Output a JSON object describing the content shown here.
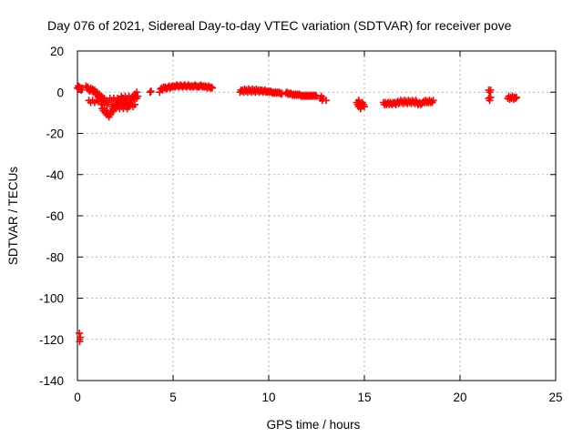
{
  "chart_data": {
    "type": "scatter",
    "title": "Day 076 of 2021, Sidereal Day-to-day VTEC variation (SDTVAR) for receiver pove",
    "xlabel": "GPS time / hours",
    "ylabel": "SDTVAR / TECUs",
    "xlim": [
      0,
      25
    ],
    "ylim": [
      -140,
      20
    ],
    "xticks": [
      0,
      5,
      10,
      15,
      20,
      25
    ],
    "yticks": [
      20,
      0,
      -20,
      -40,
      -60,
      -80,
      -100,
      -120,
      -140
    ],
    "grid": true,
    "marker": "+",
    "color": "#ff0000",
    "series": [
      {
        "name": "SDTVAR",
        "points": [
          [
            0.0,
            2
          ],
          [
            0.05,
            3
          ],
          [
            0.08,
            1.5
          ],
          [
            0.1,
            2.5
          ],
          [
            0.15,
            2
          ],
          [
            0.2,
            1
          ],
          [
            0.25,
            2
          ],
          [
            0.1,
            -117
          ],
          [
            0.15,
            -119
          ],
          [
            0.12,
            -121
          ],
          [
            0.45,
            3
          ],
          [
            0.5,
            2
          ],
          [
            0.55,
            2.5
          ],
          [
            0.6,
            1
          ],
          [
            0.65,
            0.5
          ],
          [
            0.7,
            2
          ],
          [
            0.75,
            1
          ],
          [
            0.8,
            1.5
          ],
          [
            0.85,
            0
          ],
          [
            0.9,
            1
          ],
          [
            0.95,
            -1
          ],
          [
            1.0,
            0
          ],
          [
            1.05,
            -1
          ],
          [
            1.1,
            -2
          ],
          [
            1.15,
            -1
          ],
          [
            1.2,
            -3
          ],
          [
            1.25,
            -2
          ],
          [
            1.3,
            -3
          ],
          [
            1.35,
            -4
          ],
          [
            1.4,
            -3
          ],
          [
            1.45,
            -5
          ],
          [
            1.5,
            -4
          ],
          [
            1.55,
            -6
          ],
          [
            1.6,
            -5
          ],
          [
            0.6,
            -4
          ],
          [
            0.7,
            -5
          ],
          [
            0.8,
            -4
          ],
          [
            0.9,
            -5
          ],
          [
            1.0,
            -4
          ],
          [
            1.1,
            -4.5
          ],
          [
            1.2,
            -4
          ],
          [
            1.25,
            -6
          ],
          [
            1.3,
            -8
          ],
          [
            1.35,
            -9
          ],
          [
            1.4,
            -8
          ],
          [
            1.45,
            -10
          ],
          [
            1.5,
            -9
          ],
          [
            1.55,
            -11
          ],
          [
            1.6,
            -10
          ],
          [
            1.65,
            -12
          ],
          [
            1.7,
            -11
          ],
          [
            1.75,
            -10
          ],
          [
            1.8,
            -9
          ],
          [
            1.85,
            -8
          ],
          [
            1.9,
            -9
          ],
          [
            1.95,
            -7
          ],
          [
            2.0,
            -8
          ],
          [
            2.05,
            -6
          ],
          [
            2.1,
            -7
          ],
          [
            2.15,
            -5
          ],
          [
            2.2,
            -6
          ],
          [
            2.25,
            -4
          ],
          [
            2.3,
            -5
          ],
          [
            2.35,
            -3
          ],
          [
            2.4,
            -4
          ],
          [
            2.45,
            -5
          ],
          [
            2.5,
            -6
          ],
          [
            2.55,
            -4
          ],
          [
            2.6,
            -5
          ],
          [
            2.65,
            -7
          ],
          [
            2.7,
            -6
          ],
          [
            2.75,
            -5
          ],
          [
            2.8,
            -3
          ],
          [
            2.85,
            -4
          ],
          [
            2.9,
            -2
          ],
          [
            2.95,
            -3
          ],
          [
            3.0,
            -1
          ],
          [
            3.05,
            -2
          ],
          [
            1.7,
            -3
          ],
          [
            1.8,
            -4
          ],
          [
            1.9,
            -3
          ],
          [
            2.0,
            -4
          ],
          [
            2.1,
            -3
          ],
          [
            2.2,
            -4
          ],
          [
            2.3,
            -2
          ],
          [
            2.4,
            -3
          ],
          [
            2.5,
            -2
          ],
          [
            2.6,
            -3
          ],
          [
            2.7,
            -2
          ],
          [
            2.8,
            -3
          ],
          [
            1.8,
            -7
          ],
          [
            1.9,
            -6
          ],
          [
            2.0,
            -7
          ],
          [
            2.1,
            -6
          ],
          [
            2.2,
            -8
          ],
          [
            2.3,
            -7
          ],
          [
            2.4,
            -8
          ],
          [
            2.5,
            -7
          ],
          [
            2.6,
            -8
          ],
          [
            2.7,
            -7
          ],
          [
            2.8,
            -6
          ],
          [
            2.9,
            -7
          ],
          [
            3.0,
            -6
          ],
          [
            3.1,
            0
          ],
          [
            3.1,
            -3
          ],
          [
            3.15,
            -2
          ],
          [
            3.8,
            0
          ],
          [
            3.85,
            0.5
          ],
          [
            4.3,
            0
          ],
          [
            4.35,
            1.5
          ],
          [
            4.4,
            2
          ],
          [
            4.45,
            1
          ],
          [
            4.5,
            2.5
          ],
          [
            4.55,
            2
          ],
          [
            4.6,
            2.5
          ],
          [
            4.65,
            1.5
          ],
          [
            4.7,
            2
          ],
          [
            4.75,
            2.5
          ],
          [
            4.8,
            3
          ],
          [
            4.85,
            2
          ],
          [
            4.9,
            2.5
          ],
          [
            4.95,
            3
          ],
          [
            5.0,
            2.5
          ],
          [
            5.05,
            3
          ],
          [
            5.1,
            2.5
          ],
          [
            5.15,
            3
          ],
          [
            5.2,
            3.5
          ],
          [
            5.25,
            3
          ],
          [
            5.3,
            2.5
          ],
          [
            5.35,
            3
          ],
          [
            5.4,
            3.5
          ],
          [
            5.45,
            3
          ],
          [
            5.5,
            2.5
          ],
          [
            5.55,
            3
          ],
          [
            5.6,
            3.5
          ],
          [
            5.65,
            3
          ],
          [
            5.7,
            2.5
          ],
          [
            5.75,
            3
          ],
          [
            5.8,
            3.5
          ],
          [
            5.85,
            3
          ],
          [
            5.9,
            2.5
          ],
          [
            5.95,
            3
          ],
          [
            6.0,
            3
          ],
          [
            6.05,
            2.5
          ],
          [
            6.1,
            3
          ],
          [
            6.15,
            3.5
          ],
          [
            6.2,
            3
          ],
          [
            6.25,
            2.5
          ],
          [
            6.3,
            3
          ],
          [
            6.35,
            2.5
          ],
          [
            6.4,
            3
          ],
          [
            6.45,
            3.5
          ],
          [
            6.5,
            3
          ],
          [
            6.55,
            2.5
          ],
          [
            6.6,
            3
          ],
          [
            6.65,
            2.5
          ],
          [
            6.7,
            3
          ],
          [
            6.75,
            2.5
          ],
          [
            6.8,
            2
          ],
          [
            6.85,
            3
          ],
          [
            6.9,
            2.5
          ],
          [
            6.95,
            2
          ],
          [
            7.0,
            2.5
          ],
          [
            7.05,
            2
          ],
          [
            8.5,
            0
          ],
          [
            8.55,
            1
          ],
          [
            8.6,
            0.5
          ],
          [
            8.65,
            1
          ],
          [
            8.7,
            0
          ],
          [
            8.75,
            1.5
          ],
          [
            8.8,
            0.5
          ],
          [
            8.85,
            1
          ],
          [
            8.9,
            0
          ],
          [
            8.95,
            1.5
          ],
          [
            9.0,
            0.5
          ],
          [
            9.05,
            1
          ],
          [
            9.1,
            0
          ],
          [
            9.15,
            1.5
          ],
          [
            9.2,
            0.5
          ],
          [
            9.25,
            1
          ],
          [
            9.3,
            0
          ],
          [
            9.35,
            1.5
          ],
          [
            9.4,
            0.5
          ],
          [
            9.45,
            1
          ],
          [
            9.5,
            0
          ],
          [
            9.55,
            1
          ],
          [
            9.6,
            0.5
          ],
          [
            9.65,
            1
          ],
          [
            9.7,
            0
          ],
          [
            9.75,
            0.5
          ],
          [
            9.8,
            1
          ],
          [
            9.85,
            0
          ],
          [
            9.9,
            0.5
          ],
          [
            9.95,
            0
          ],
          [
            10.0,
            0.5
          ],
          [
            10.05,
            0
          ],
          [
            10.1,
            0.5
          ],
          [
            10.15,
            0
          ],
          [
            10.2,
            -0.5
          ],
          [
            10.25,
            0
          ],
          [
            10.3,
            -0.5
          ],
          [
            10.35,
            0
          ],
          [
            10.4,
            -0.5
          ],
          [
            10.45,
            0
          ],
          [
            10.5,
            -0.5
          ],
          [
            10.55,
            0
          ],
          [
            10.6,
            -0.5
          ],
          [
            10.65,
            -1
          ],
          [
            10.7,
            -0.5
          ],
          [
            10.9,
            -0.5
          ],
          [
            10.95,
            0
          ],
          [
            11.0,
            -1
          ],
          [
            11.05,
            -0.5
          ],
          [
            11.1,
            -1
          ],
          [
            11.15,
            -0.5
          ],
          [
            11.2,
            -1
          ],
          [
            11.25,
            -1.5
          ],
          [
            11.3,
            -1
          ],
          [
            11.35,
            -1.5
          ],
          [
            11.4,
            -1
          ],
          [
            11.45,
            -1.5
          ],
          [
            11.5,
            -1
          ],
          [
            11.55,
            -1.5
          ],
          [
            11.6,
            -1
          ],
          [
            11.65,
            -1.5
          ],
          [
            11.7,
            -2
          ],
          [
            11.75,
            -1.5
          ],
          [
            11.8,
            -2
          ],
          [
            11.85,
            -1.5
          ],
          [
            11.9,
            -2
          ],
          [
            11.95,
            -1.5
          ],
          [
            12.0,
            -2
          ],
          [
            12.05,
            -1.5
          ],
          [
            12.1,
            -2
          ],
          [
            12.15,
            -1.5
          ],
          [
            12.2,
            -2
          ],
          [
            12.25,
            -1.5
          ],
          [
            12.3,
            -2
          ],
          [
            12.35,
            -1.5
          ],
          [
            12.4,
            -2
          ],
          [
            12.45,
            -1.5
          ],
          [
            12.5,
            -2
          ],
          [
            12.7,
            -3
          ],
          [
            12.75,
            -2
          ],
          [
            12.8,
            -4
          ],
          [
            12.85,
            -3
          ],
          [
            13.0,
            -4
          ],
          [
            14.6,
            -5
          ],
          [
            14.65,
            -6
          ],
          [
            14.7,
            -7
          ],
          [
            14.75,
            -5
          ],
          [
            14.8,
            -6
          ],
          [
            14.85,
            -7
          ],
          [
            14.9,
            -5
          ],
          [
            14.95,
            -6
          ],
          [
            15.0,
            -7
          ],
          [
            14.7,
            -4
          ],
          [
            14.8,
            -8
          ],
          [
            16.0,
            -5
          ],
          [
            16.05,
            -6
          ],
          [
            16.1,
            -5
          ],
          [
            16.15,
            -6
          ],
          [
            16.2,
            -5.5
          ],
          [
            16.25,
            -5
          ],
          [
            16.3,
            -6
          ],
          [
            16.35,
            -5
          ],
          [
            16.4,
            -5.5
          ],
          [
            16.45,
            -6
          ],
          [
            16.5,
            -5
          ],
          [
            16.55,
            -5.5
          ],
          [
            16.6,
            -5
          ],
          [
            16.65,
            -6
          ],
          [
            16.7,
            -5
          ],
          [
            16.75,
            -4.5
          ],
          [
            16.8,
            -5.5
          ],
          [
            16.85,
            -5
          ],
          [
            16.9,
            -4
          ],
          [
            16.95,
            -5
          ],
          [
            17.0,
            -4.5
          ],
          [
            17.05,
            -5.5
          ],
          [
            17.1,
            -4
          ],
          [
            17.15,
            -5
          ],
          [
            17.2,
            -4.5
          ],
          [
            17.25,
            -5.5
          ],
          [
            17.3,
            -4
          ],
          [
            17.35,
            -5
          ],
          [
            17.4,
            -4.5
          ],
          [
            17.45,
            -5.5
          ],
          [
            17.5,
            -4
          ],
          [
            17.55,
            -5
          ],
          [
            17.6,
            -4.5
          ],
          [
            17.65,
            -5.5
          ],
          [
            17.7,
            -4
          ],
          [
            17.75,
            -5
          ],
          [
            17.8,
            -6
          ],
          [
            17.85,
            -5.5
          ],
          [
            17.9,
            -5
          ],
          [
            17.95,
            -6
          ],
          [
            18.0,
            -5.5
          ],
          [
            18.05,
            -5
          ],
          [
            18.1,
            -4.5
          ],
          [
            18.15,
            -5
          ],
          [
            18.2,
            -4
          ],
          [
            18.25,
            -5
          ],
          [
            18.3,
            -4.5
          ],
          [
            18.35,
            -5
          ],
          [
            18.4,
            -4
          ],
          [
            18.45,
            -5
          ],
          [
            18.5,
            -4.5
          ],
          [
            18.55,
            -5
          ],
          [
            18.6,
            -4
          ],
          [
            21.5,
            1
          ],
          [
            21.55,
            0
          ],
          [
            21.6,
            1
          ],
          [
            21.5,
            -3
          ],
          [
            21.55,
            -4
          ],
          [
            21.6,
            -2.5
          ],
          [
            22.5,
            -3
          ],
          [
            22.55,
            -2
          ],
          [
            22.6,
            -3.5
          ],
          [
            22.65,
            -2.5
          ],
          [
            22.7,
            -3
          ],
          [
            22.75,
            -2
          ],
          [
            22.8,
            -3.5
          ],
          [
            22.85,
            -2.5
          ],
          [
            22.9,
            -3
          ],
          [
            22.95,
            -2.5
          ]
        ]
      }
    ]
  }
}
